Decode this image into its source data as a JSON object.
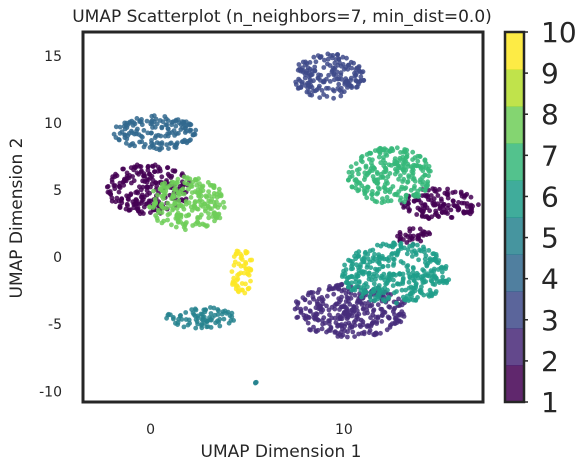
{
  "chart_data": {
    "type": "scatter",
    "title": "UMAP Scatterplot (n_neighbors=7, min_dist=0.0)",
    "xlabel": "UMAP Dimension 1",
    "ylabel": "UMAP Dimension 2",
    "xlim": [
      -3.5,
      17.2
    ],
    "ylim": [
      -10.8,
      16.8
    ],
    "x_ticks": [
      0,
      10
    ],
    "y_ticks": [
      -10,
      -5,
      0,
      5,
      10,
      15
    ],
    "grid": false,
    "colormap": "viridis",
    "colorbar": {
      "ticks": [
        1,
        2,
        3,
        4,
        5,
        6,
        7,
        8,
        9,
        10
      ],
      "range": [
        1,
        10
      ],
      "levels": 10
    },
    "clusters": [
      {
        "label": 1,
        "color": "#440154",
        "regions": [
          {
            "cx": -0.1,
            "cy": 5.1,
            "rx": 2.2,
            "ry": 1.9
          },
          {
            "cx": 15.0,
            "cy": 4.0,
            "rx": 2.0,
            "ry": 1.2
          },
          {
            "cx": 13.6,
            "cy": 1.6,
            "rx": 0.9,
            "ry": 0.7
          }
        ]
      },
      {
        "label": 3,
        "color": "#3e4a89",
        "regions": [
          {
            "cx": 9.2,
            "cy": 13.5,
            "rx": 1.9,
            "ry": 1.7
          }
        ]
      },
      {
        "label": 2,
        "color": "#472d7b",
        "regions": [
          {
            "cx": 10.3,
            "cy": -4.0,
            "rx": 3.0,
            "ry": 2.0
          }
        ]
      },
      {
        "label": 4,
        "color": "#31688e",
        "regions": [
          {
            "cx": 0.3,
            "cy": 9.3,
            "rx": 2.2,
            "ry": 1.3
          }
        ]
      },
      {
        "label": 5,
        "color": "#26828e",
        "regions": [
          {
            "cx": 2.6,
            "cy": -4.5,
            "rx": 1.8,
            "ry": 0.8
          },
          {
            "cx": 5.4,
            "cy": -9.4,
            "rx": 0.1,
            "ry": 0.1
          }
        ]
      },
      {
        "label": 6,
        "color": "#1f9e89",
        "regions": [
          {
            "cx": 12.7,
            "cy": -1.2,
            "rx": 2.8,
            "ry": 2.3
          }
        ]
      },
      {
        "label": 7,
        "color": "#35b779",
        "regions": [
          {
            "cx": 12.4,
            "cy": 6.1,
            "rx": 2.2,
            "ry": 2.1
          }
        ]
      },
      {
        "label": 8,
        "color": "#6ece58",
        "regions": [
          {
            "cx": 1.9,
            "cy": 4.0,
            "rx": 2.0,
            "ry": 2.0
          }
        ]
      },
      {
        "label": 10,
        "color": "#fde725",
        "regions": [
          {
            "cx": 4.7,
            "cy": -1.0,
            "rx": 0.6,
            "ry": 1.8
          }
        ]
      }
    ]
  }
}
